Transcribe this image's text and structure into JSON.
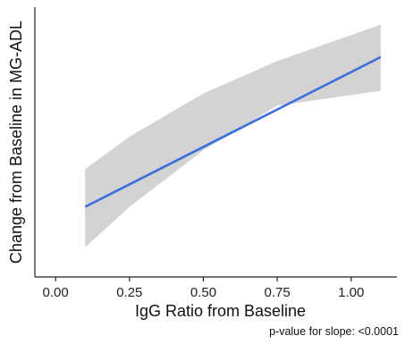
{
  "chart_data": {
    "type": "line",
    "title": "",
    "xlabel": "IgG Ratio from Baseline",
    "ylabel": "Change from Baseline in MG-ADL",
    "xlim": [
      -0.07,
      1.155
    ],
    "ylim": [
      0,
      1
    ],
    "y_ticks_shown": false,
    "grid": false,
    "x_ticks": [
      0.0,
      0.25,
      0.5,
      0.75,
      1.0
    ],
    "x_tick_labels": [
      "0.00",
      "0.25",
      "0.50",
      "0.75",
      "1.00"
    ],
    "series": [
      {
        "color": "#3b6fe0",
        "x": [
          0.1,
          1.1
        ],
        "y": [
          0.26,
          0.815
        ]
      }
    ],
    "confidence_band": {
      "color": "#d3d3d3",
      "x": [
        0.1,
        0.25,
        0.5,
        0.75,
        1.1
      ],
      "upper": [
        0.4,
        0.52,
        0.68,
        0.8,
        0.935
      ],
      "lower": [
        0.11,
        0.26,
        0.47,
        0.635,
        0.69
      ]
    },
    "annotation": "p-value for slope: <0.0001"
  }
}
